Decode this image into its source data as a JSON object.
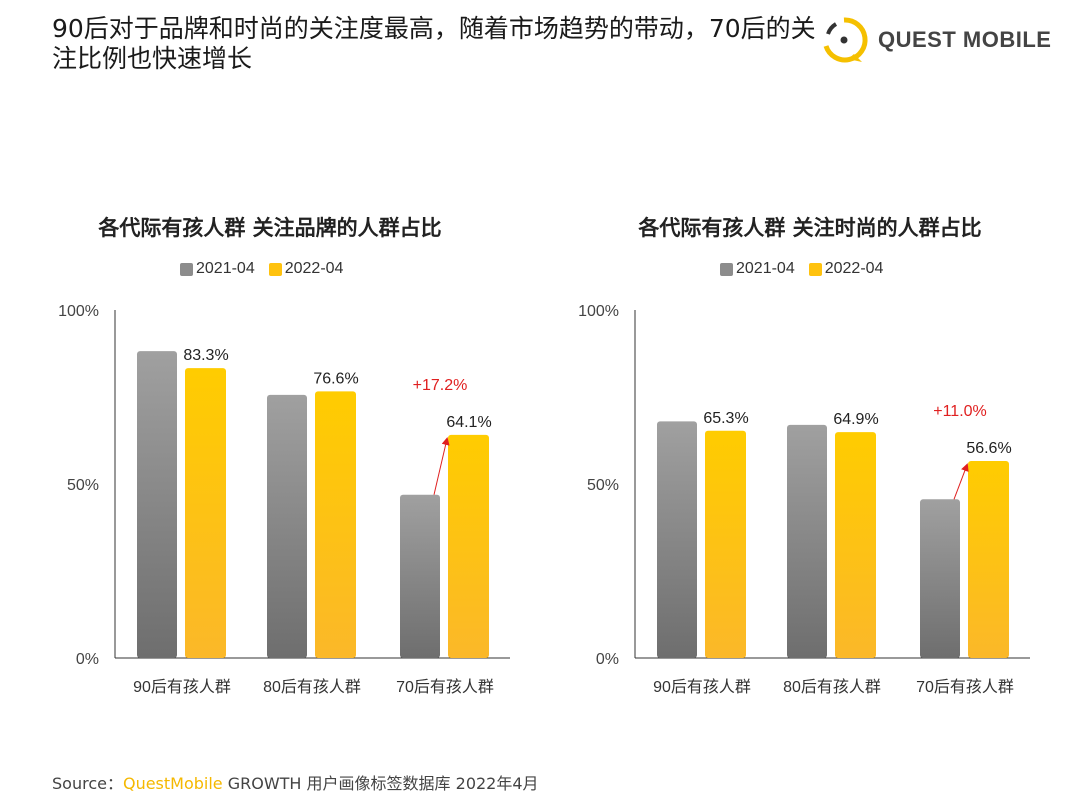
{
  "header": {
    "title": "90后对于品牌和时尚的关注度最高，随着市场趋势的带动，70后的关注比例也快速增长",
    "logo_text": "QUEST MOBILE"
  },
  "colors": {
    "series_2021": "#8c8c8c",
    "series_2022": "#ffc20e",
    "delta": "#e02020",
    "accent": "#f5b800"
  },
  "chart_data": [
    {
      "type": "bar",
      "title": "各代际有孩人群 关注品牌的人群占比",
      "categories": [
        "90后有孩人群",
        "80后有孩人群",
        "70后有孩人群"
      ],
      "series": [
        {
          "name": "2021-04",
          "values": [
            88.2,
            75.6,
            46.9
          ]
        },
        {
          "name": "2022-04",
          "values": [
            83.3,
            76.6,
            64.1
          ],
          "labels": [
            "83.3%",
            "76.6%",
            "64.1%"
          ]
        }
      ],
      "annotation": {
        "category": "70后有孩人群",
        "text": "+17.2%"
      },
      "yticks": [
        "0%",
        "50%",
        "100%"
      ],
      "ylim": [
        0,
        100
      ],
      "legend": "top",
      "grid": false
    },
    {
      "type": "bar",
      "title": "各代际有孩人群 关注时尚的人群占比",
      "categories": [
        "90后有孩人群",
        "80后有孩人群",
        "70后有孩人群"
      ],
      "series": [
        {
          "name": "2021-04",
          "values": [
            68.0,
            67.0,
            45.6
          ]
        },
        {
          "name": "2022-04",
          "values": [
            65.3,
            64.9,
            56.6
          ],
          "labels": [
            "65.3%",
            "64.9%",
            "56.6%"
          ]
        }
      ],
      "annotation": {
        "category": "70后有孩人群",
        "text": "+11.0%"
      },
      "yticks": [
        "0%",
        "50%",
        "100%"
      ],
      "ylim": [
        0,
        100
      ],
      "legend": "top",
      "grid": false
    }
  ],
  "source": {
    "prefix": "Source：",
    "brand": "QuestMobile",
    "rest": " GROWTH 用户画像标签数据库 2022年4月"
  }
}
